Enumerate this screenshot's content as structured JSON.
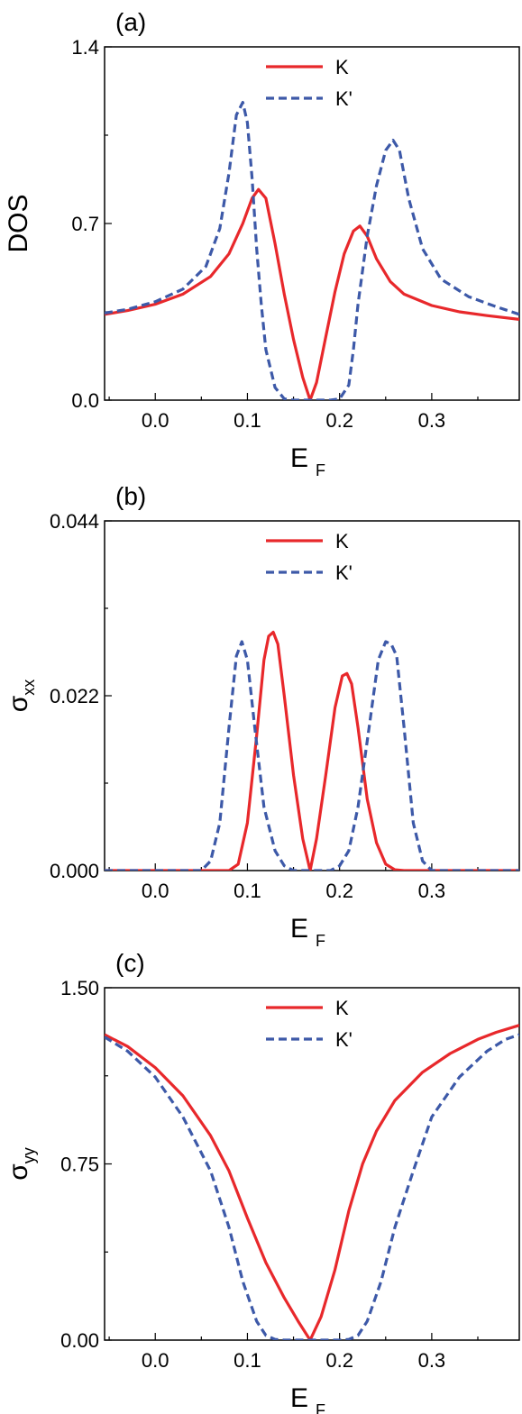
{
  "chart_data": [
    {
      "type": "line",
      "panel_label": "(a)",
      "xlabel": "E",
      "xlabel_sub": "F",
      "ylabel": "DOS",
      "ylabel_sub": "",
      "xlim": [
        -0.055,
        0.395
      ],
      "ylim": [
        0.0,
        1.4
      ],
      "xticks": [
        0.0,
        0.1,
        0.2,
        0.3
      ],
      "xtick_labels": [
        "0.0",
        "0.1",
        "0.2",
        "0.3"
      ],
      "yticks": [
        0.0,
        0.7,
        1.4
      ],
      "ytick_labels": [
        "0.0",
        "0.7",
        "1.4"
      ],
      "legend_position": "top-center",
      "series": [
        {
          "name": "K",
          "color": "#e8282b",
          "dash": "solid",
          "x": [
            -0.055,
            -0.03,
            0.0,
            0.03,
            0.06,
            0.08,
            0.095,
            0.105,
            0.112,
            0.12,
            0.13,
            0.14,
            0.15,
            0.16,
            0.168,
            0.175,
            0.185,
            0.195,
            0.205,
            0.215,
            0.222,
            0.23,
            0.24,
            0.255,
            0.27,
            0.3,
            0.33,
            0.36,
            0.395
          ],
          "y": [
            0.34,
            0.355,
            0.38,
            0.42,
            0.49,
            0.58,
            0.7,
            0.8,
            0.835,
            0.8,
            0.62,
            0.42,
            0.24,
            0.09,
            0.0,
            0.07,
            0.25,
            0.43,
            0.58,
            0.67,
            0.69,
            0.65,
            0.56,
            0.47,
            0.42,
            0.375,
            0.35,
            0.335,
            0.32
          ]
        },
        {
          "name": "K'",
          "color": "#3d59a8",
          "dash": "dashed",
          "x": [
            -0.055,
            -0.03,
            0.0,
            0.03,
            0.055,
            0.07,
            0.08,
            0.088,
            0.095,
            0.1,
            0.105,
            0.11,
            0.115,
            0.12,
            0.13,
            0.14,
            0.15,
            0.19,
            0.2,
            0.21,
            0.215,
            0.22,
            0.23,
            0.24,
            0.25,
            0.258,
            0.265,
            0.275,
            0.29,
            0.31,
            0.34,
            0.37,
            0.395
          ],
          "y": [
            0.345,
            0.36,
            0.39,
            0.44,
            0.53,
            0.68,
            0.9,
            1.13,
            1.18,
            1.1,
            0.88,
            0.6,
            0.38,
            0.2,
            0.05,
            0.005,
            0.0,
            0.0,
            0.005,
            0.06,
            0.2,
            0.38,
            0.65,
            0.85,
            0.99,
            1.03,
            0.99,
            0.8,
            0.6,
            0.48,
            0.41,
            0.37,
            0.34
          ]
        }
      ]
    },
    {
      "type": "line",
      "panel_label": "(b)",
      "xlabel": "E",
      "xlabel_sub": "F",
      "ylabel": "σ",
      "ylabel_sub": "xx",
      "xlim": [
        -0.055,
        0.395
      ],
      "ylim": [
        0.0,
        0.044
      ],
      "xticks": [
        0.0,
        0.1,
        0.2,
        0.3
      ],
      "xtick_labels": [
        "0.0",
        "0.1",
        "0.2",
        "0.3"
      ],
      "yticks": [
        0.0,
        0.022,
        0.044
      ],
      "ytick_labels": [
        "0.000",
        "0.022",
        "0.044"
      ],
      "legend_position": "top-center",
      "series": [
        {
          "name": "K",
          "color": "#e8282b",
          "dash": "solid",
          "x": [
            -0.055,
            0.08,
            0.09,
            0.1,
            0.11,
            0.118,
            0.123,
            0.128,
            0.133,
            0.14,
            0.15,
            0.16,
            0.168,
            0.175,
            0.185,
            0.195,
            0.203,
            0.208,
            0.213,
            0.22,
            0.23,
            0.24,
            0.25,
            0.26,
            0.27,
            0.395
          ],
          "y": [
            0.0,
            0.0,
            0.0008,
            0.006,
            0.017,
            0.0265,
            0.0295,
            0.03,
            0.0285,
            0.022,
            0.012,
            0.004,
            0.0,
            0.004,
            0.012,
            0.0205,
            0.0245,
            0.0248,
            0.0235,
            0.018,
            0.009,
            0.0035,
            0.0008,
            0.0001,
            0.0,
            0.0
          ]
        },
        {
          "name": "K'",
          "color": "#3d59a8",
          "dash": "dashed",
          "x": [
            -0.055,
            0.05,
            0.06,
            0.07,
            0.08,
            0.088,
            0.094,
            0.1,
            0.108,
            0.118,
            0.13,
            0.14,
            0.15,
            0.19,
            0.2,
            0.21,
            0.22,
            0.232,
            0.242,
            0.25,
            0.256,
            0.262,
            0.27,
            0.28,
            0.29,
            0.3,
            0.395
          ],
          "y": [
            0.0,
            0.0,
            0.0012,
            0.006,
            0.018,
            0.027,
            0.0288,
            0.0265,
            0.018,
            0.008,
            0.0025,
            0.0006,
            0.0,
            0.0,
            0.0006,
            0.0025,
            0.008,
            0.018,
            0.0265,
            0.0288,
            0.0285,
            0.027,
            0.018,
            0.006,
            0.0012,
            0.0,
            0.0
          ]
        }
      ]
    },
    {
      "type": "line",
      "panel_label": "(c)",
      "xlabel": "E",
      "xlabel_sub": "F",
      "ylabel": "σ",
      "ylabel_sub": "yy",
      "xlim": [
        -0.055,
        0.395
      ],
      "ylim": [
        0.0,
        1.5
      ],
      "xticks": [
        0.0,
        0.1,
        0.2,
        0.3
      ],
      "xtick_labels": [
        "0.0",
        "0.1",
        "0.2",
        "0.3"
      ],
      "yticks": [
        0.0,
        0.75,
        1.5
      ],
      "ytick_labels": [
        "0.00",
        "0.75",
        "1.50"
      ],
      "legend_position": "top-center",
      "series": [
        {
          "name": "K",
          "color": "#e8282b",
          "dash": "solid",
          "x": [
            -0.055,
            -0.03,
            0.0,
            0.03,
            0.06,
            0.08,
            0.1,
            0.12,
            0.14,
            0.155,
            0.168,
            0.18,
            0.195,
            0.21,
            0.225,
            0.24,
            0.26,
            0.29,
            0.32,
            0.35,
            0.37,
            0.395
          ],
          "y": [
            1.3,
            1.25,
            1.16,
            1.04,
            0.87,
            0.72,
            0.52,
            0.33,
            0.18,
            0.08,
            0.0,
            0.1,
            0.3,
            0.55,
            0.75,
            0.89,
            1.02,
            1.14,
            1.22,
            1.28,
            1.31,
            1.34
          ]
        },
        {
          "name": "K'",
          "color": "#3d59a8",
          "dash": "dashed",
          "x": [
            -0.055,
            -0.03,
            0.0,
            0.03,
            0.06,
            0.08,
            0.095,
            0.11,
            0.12,
            0.13,
            0.14,
            0.2,
            0.21,
            0.22,
            0.23,
            0.245,
            0.26,
            0.28,
            0.3,
            0.33,
            0.36,
            0.38,
            0.395
          ],
          "y": [
            1.29,
            1.23,
            1.12,
            0.95,
            0.72,
            0.48,
            0.25,
            0.08,
            0.02,
            0.003,
            0.0,
            0.0,
            0.003,
            0.02,
            0.08,
            0.25,
            0.48,
            0.72,
            0.95,
            1.12,
            1.23,
            1.28,
            1.3
          ]
        }
      ]
    }
  ]
}
